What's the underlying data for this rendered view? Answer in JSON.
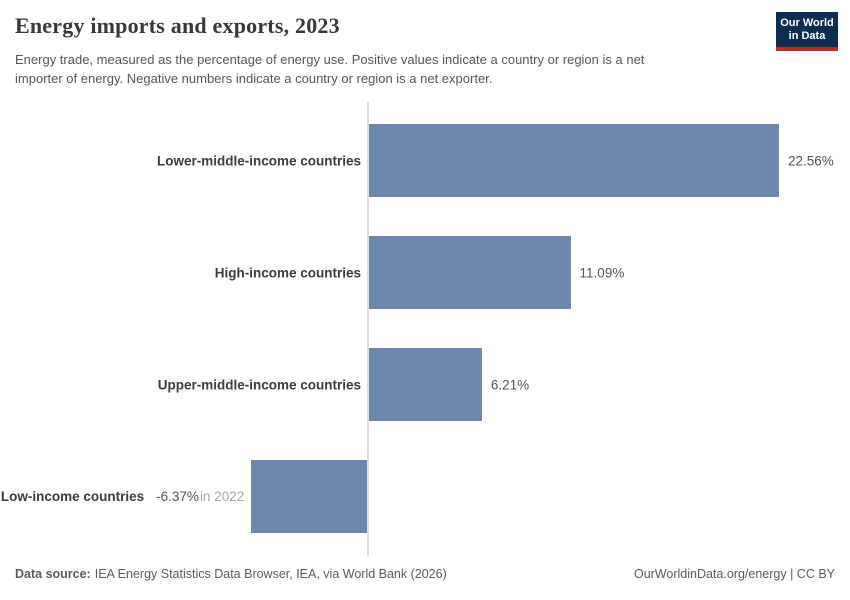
{
  "header": {
    "title": "Energy imports and exports, 2023",
    "subtitle_lines": [
      "Energy trade, measured as the percentage of energy use. Positive values indicate a country or region is a net",
      "importer of energy. Negative numbers indicate a country or region is a net exporter."
    ],
    "logo": {
      "line1": "Our World",
      "line2": "in Data",
      "bg_color": "#0d2d52",
      "accent_color": "#c42a23"
    }
  },
  "chart_data": {
    "type": "bar",
    "orientation": "horizontal",
    "title": "Energy imports and exports, 2023",
    "xlabel": "",
    "ylabel": "",
    "categories": [
      "Lower-middle-income countries",
      "High-income countries",
      "Upper-middle-income countries",
      "Low-income countries"
    ],
    "values": [
      22.56,
      11.09,
      6.21,
      -6.37
    ],
    "value_labels": [
      "22.56%",
      "11.09%",
      "6.21%",
      "-6.37%"
    ],
    "notes": [
      "",
      "",
      "",
      "in 2022"
    ],
    "unit": "%",
    "xlim": [
      -10,
      25
    ],
    "grid": false,
    "legend": "none",
    "bar_color": "#6e87ad",
    "axis_line_color": "#dedede"
  },
  "footer": {
    "source_label": "Data source:",
    "source_text": "IEA Energy Statistics Data Browser, IEA, via World Bank (2026)",
    "url": "OurWorldinData.org/energy",
    "license": " | CC BY"
  }
}
